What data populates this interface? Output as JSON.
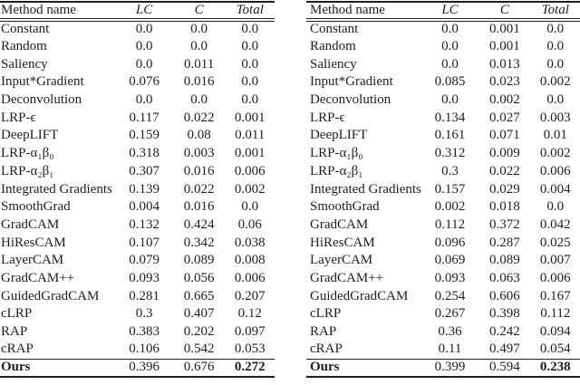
{
  "page": {
    "background": "#ffffff",
    "text_color": "#1e1e1e",
    "rule_color": "#1e1e1e"
  },
  "tables": [
    {
      "headers": {
        "method": "Method name",
        "lc": "LC",
        "c": "C",
        "total": "Total"
      },
      "rows": [
        {
          "method": "Constant",
          "lc": "0.0",
          "c": "0.0",
          "total": "0.0"
        },
        {
          "method": "Random",
          "lc": "0.0",
          "c": "0.0",
          "total": "0.0"
        },
        {
          "method": "Saliency",
          "lc": "0.0",
          "c": "0.011",
          "total": "0.0"
        },
        {
          "method": "Input*Gradient",
          "lc": "0.076",
          "c": "0.016",
          "total": "0.0"
        },
        {
          "method": "Deconvolution",
          "lc": "0.0",
          "c": "0.0",
          "total": "0.0"
        },
        {
          "method": "LRP-ϵ",
          "lc": "0.117",
          "c": "0.022",
          "total": "0.001"
        },
        {
          "method": "DeepLIFT",
          "lc": "0.159",
          "c": "0.08",
          "total": "0.011"
        },
        {
          "method": "LRP-α₁β₀",
          "lc": "0.318",
          "c": "0.003",
          "total": "0.001"
        },
        {
          "method": "LRP-α₂β₁",
          "lc": "0.307",
          "c": "0.016",
          "total": "0.006"
        },
        {
          "method": "Integrated Gradients",
          "lc": "0.139",
          "c": "0.022",
          "total": "0.002"
        },
        {
          "method": "SmoothGrad",
          "lc": "0.004",
          "c": "0.016",
          "total": "0.0"
        },
        {
          "method": "GradCAM",
          "lc": "0.132",
          "c": "0.424",
          "total": "0.06"
        },
        {
          "method": "HiResCAM",
          "lc": "0.107",
          "c": "0.342",
          "total": "0.038"
        },
        {
          "method": "LayerCAM",
          "lc": "0.079",
          "c": "0.089",
          "total": "0.008"
        },
        {
          "method": "GradCAM++",
          "lc": "0.093",
          "c": "0.056",
          "total": "0.006"
        },
        {
          "method": "GuidedGradCAM",
          "lc": "0.281",
          "c": "0.665",
          "total": "0.207"
        },
        {
          "method": "cLRP",
          "lc": "0.3",
          "c": "0.407",
          "total": "0.12"
        },
        {
          "method": "RAP",
          "lc": "0.383",
          "c": "0.202",
          "total": "0.097"
        },
        {
          "method": "cRAP",
          "lc": "0.106",
          "c": "0.542",
          "total": "0.053"
        },
        {
          "method": "Ours",
          "lc": "0.396",
          "c": "0.676",
          "total": "0.272",
          "emphasis": true
        }
      ]
    },
    {
      "headers": {
        "method": "Method name",
        "lc": "LC",
        "c": "C",
        "total": "Total"
      },
      "rows": [
        {
          "method": "Constant",
          "lc": "0.0",
          "c": "0.001",
          "total": "0.0"
        },
        {
          "method": "Random",
          "lc": "0.0",
          "c": "0.001",
          "total": "0.0"
        },
        {
          "method": "Saliency",
          "lc": "0.0",
          "c": "0.013",
          "total": "0.0"
        },
        {
          "method": "Input*Gradient",
          "lc": "0.085",
          "c": "0.023",
          "total": "0.002"
        },
        {
          "method": "Deconvolution",
          "lc": "0.0",
          "c": "0.002",
          "total": "0.0"
        },
        {
          "method": "LRP-ϵ",
          "lc": "0.134",
          "c": "0.027",
          "total": "0.003"
        },
        {
          "method": "DeepLIFT",
          "lc": "0.161",
          "c": "0.071",
          "total": "0.01"
        },
        {
          "method": "LRP-α₁β₀",
          "lc": "0.312",
          "c": "0.009",
          "total": "0.002"
        },
        {
          "method": "LRP-α₂β₁",
          "lc": "0.3",
          "c": "0.022",
          "total": "0.006"
        },
        {
          "method": "Integrated Gradients",
          "lc": "0.157",
          "c": "0.029",
          "total": "0.004"
        },
        {
          "method": "SmoothGrad",
          "lc": "0.002",
          "c": "0.018",
          "total": "0.0"
        },
        {
          "method": "GradCAM",
          "lc": "0.112",
          "c": "0.372",
          "total": "0.042"
        },
        {
          "method": "HiResCAM",
          "lc": "0.096",
          "c": "0.287",
          "total": "0.025"
        },
        {
          "method": "LayerCAM",
          "lc": "0.069",
          "c": "0.089",
          "total": "0.007"
        },
        {
          "method": "GradCAM++",
          "lc": "0.093",
          "c": "0.063",
          "total": "0.006"
        },
        {
          "method": "GuidedGradCAM",
          "lc": "0.254",
          "c": "0.606",
          "total": "0.167"
        },
        {
          "method": "cLRP",
          "lc": "0.267",
          "c": "0.398",
          "total": "0.112"
        },
        {
          "method": "RAP",
          "lc": "0.36",
          "c": "0.242",
          "total": "0.094"
        },
        {
          "method": "cRAP",
          "lc": "0.11",
          "c": "0.497",
          "total": "0.054"
        },
        {
          "method": "Ours",
          "lc": "0.399",
          "c": "0.594",
          "total": "0.238",
          "emphasis": true
        }
      ]
    }
  ]
}
